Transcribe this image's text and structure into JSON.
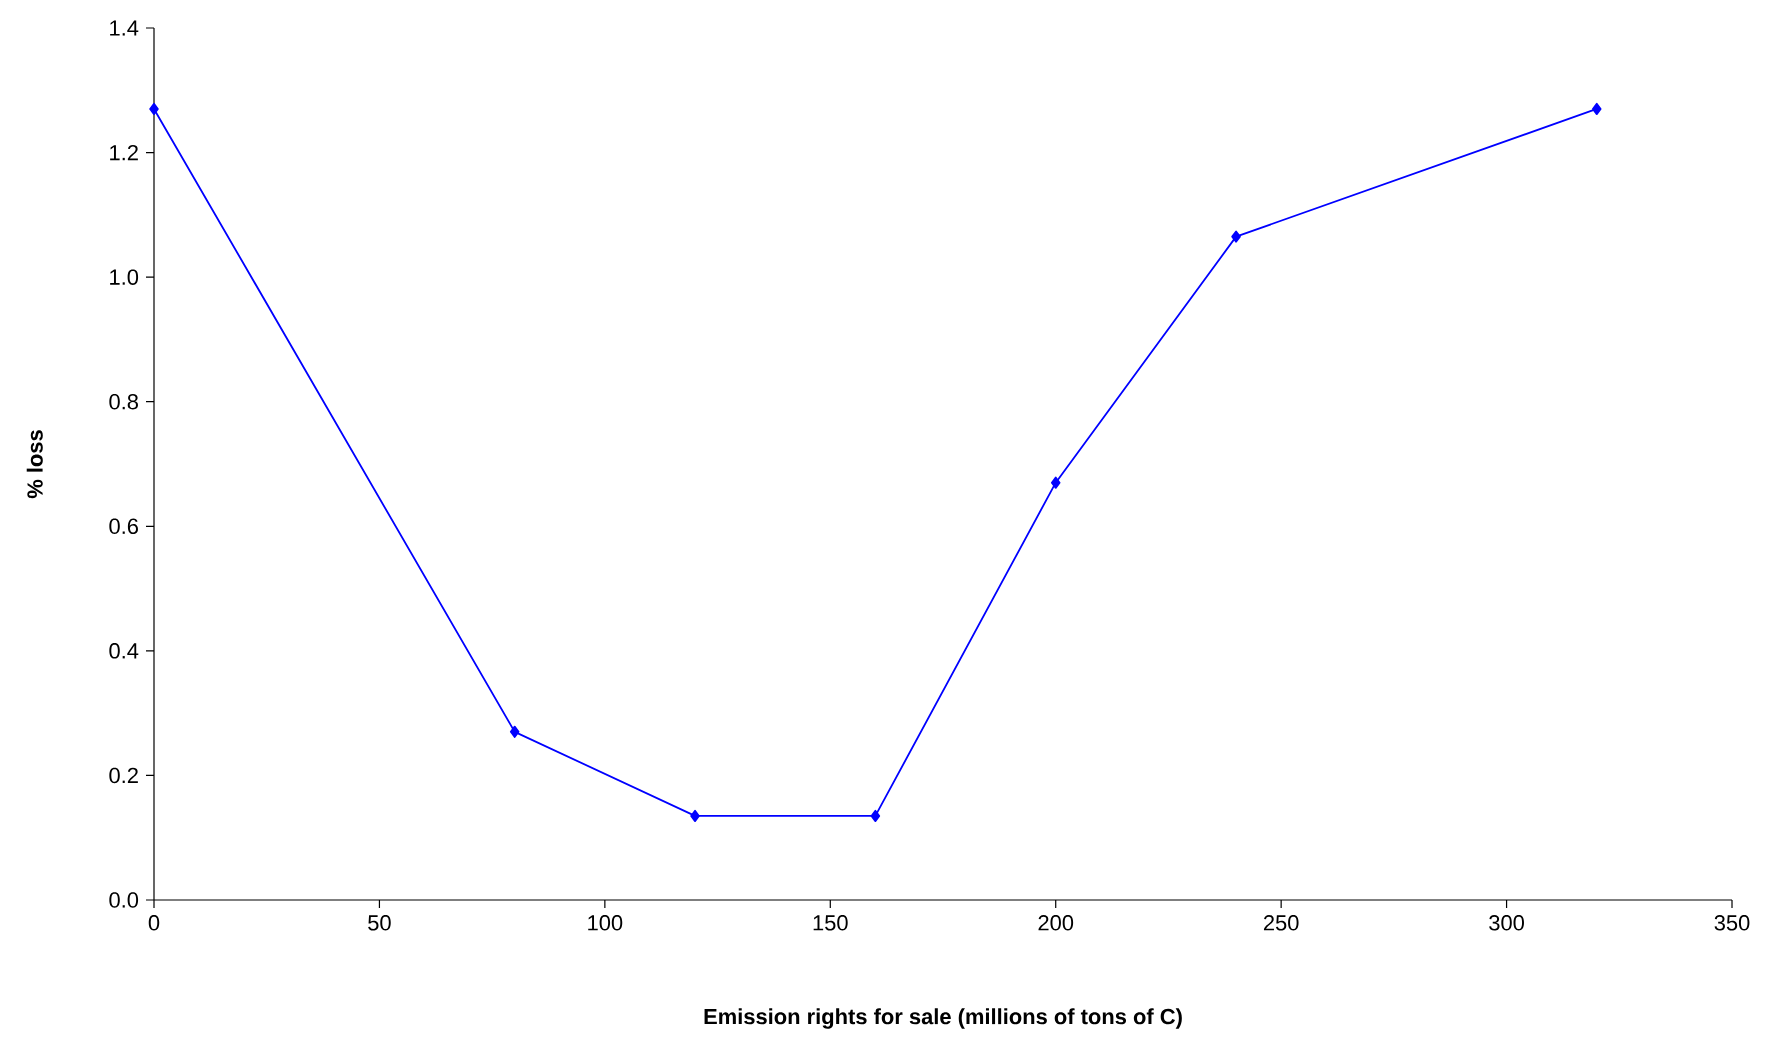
{
  "chart_data": {
    "type": "line",
    "xlabel": "Emission rights for sale (millions of tons of C)",
    "ylabel": "% loss",
    "x": [
      0,
      80,
      120,
      160,
      200,
      240,
      320
    ],
    "series": [
      {
        "color": "#0000ff",
        "values": [
          1.27,
          0.27,
          0.135,
          0.135,
          0.67,
          1.065,
          1.27
        ]
      }
    ],
    "xlim": [
      0,
      350
    ],
    "xticks": [
      0,
      50,
      100,
      150,
      200,
      250,
      300,
      350
    ],
    "ylim": [
      0,
      1.4
    ],
    "yticks": [
      {
        "value": 0,
        "label": "0.0"
      },
      {
        "value": 0.2,
        "label": "0.2"
      },
      {
        "value": 0.4,
        "label": "0.4"
      },
      {
        "value": 0.6,
        "label": "0.6"
      },
      {
        "value": 0.8,
        "label": "0.8"
      },
      {
        "value": 1.0,
        "label": "1.0"
      },
      {
        "value": 1.2,
        "label": "1.2"
      },
      {
        "value": 1.4,
        "label": "1.4"
      }
    ],
    "grid": false,
    "marker": "diamond",
    "line_style": "solid"
  }
}
